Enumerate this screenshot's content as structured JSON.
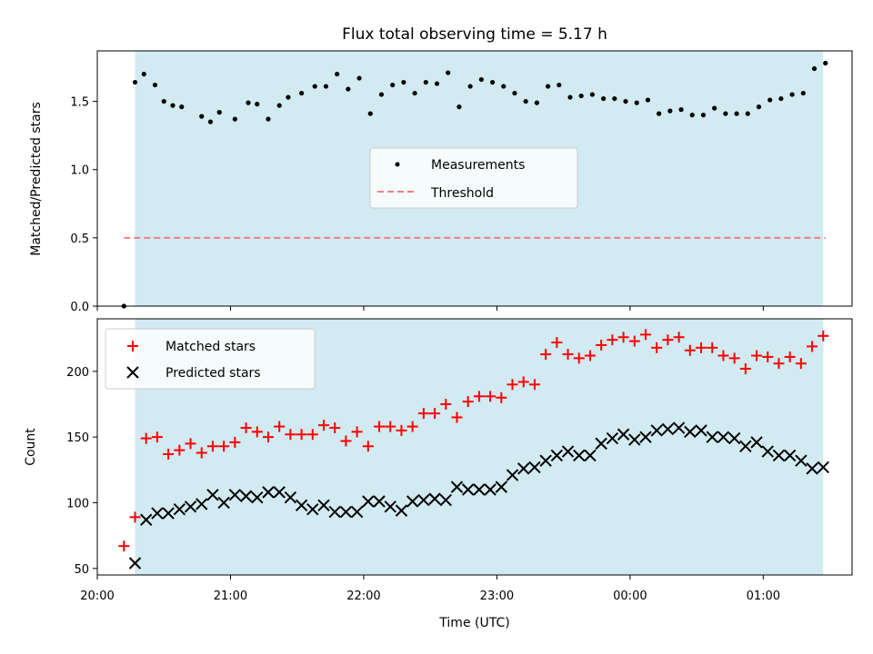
{
  "chart_data": [
    {
      "type": "scatter",
      "title": "Flux total observing time = 5.17 h",
      "ylabel": "Matched/Predicted stars",
      "xlim": [
        "20:00",
        "01:40"
      ],
      "ylim": [
        0,
        1.87
      ],
      "yticks": [
        "0.0",
        "0.5",
        "1.0",
        "1.5"
      ],
      "x_ticks_unlabeled": [
        "20:00",
        "21:00",
        "22:00",
        "23:00",
        "00:00",
        "01:00"
      ],
      "shaded_interval": [
        "20:17",
        "01:27"
      ],
      "shade_color": "#add8e6",
      "legend_position": "center",
      "series": [
        {
          "name": "Measurements",
          "marker": "dot",
          "color": "#000000",
          "points": [
            [
              "20:12",
              0.0
            ],
            [
              "20:17",
              1.64
            ],
            [
              "20:21",
              1.7
            ],
            [
              "20:26",
              1.62
            ],
            [
              "20:30",
              1.5
            ],
            [
              "20:34",
              1.47
            ],
            [
              "20:38",
              1.46
            ],
            [
              "20:47",
              1.39
            ],
            [
              "20:51",
              1.35
            ],
            [
              "20:55",
              1.42
            ],
            [
              "21:02",
              1.37
            ],
            [
              "21:08",
              1.49
            ],
            [
              "21:12",
              1.48
            ],
            [
              "21:17",
              1.37
            ],
            [
              "21:22",
              1.47
            ],
            [
              "21:26",
              1.53
            ],
            [
              "21:32",
              1.56
            ],
            [
              "21:38",
              1.61
            ],
            [
              "21:43",
              1.61
            ],
            [
              "21:48",
              1.7
            ],
            [
              "21:53",
              1.59
            ],
            [
              "21:58",
              1.67
            ],
            [
              "22:03",
              1.41
            ],
            [
              "22:08",
              1.55
            ],
            [
              "22:13",
              1.62
            ],
            [
              "22:18",
              1.64
            ],
            [
              "22:23",
              1.56
            ],
            [
              "22:28",
              1.64
            ],
            [
              "22:33",
              1.63
            ],
            [
              "22:38",
              1.71
            ],
            [
              "22:43",
              1.46
            ],
            [
              "22:48",
              1.61
            ],
            [
              "22:53",
              1.66
            ],
            [
              "22:58",
              1.64
            ],
            [
              "23:03",
              1.61
            ],
            [
              "23:08",
              1.56
            ],
            [
              "23:13",
              1.5
            ],
            [
              "23:18",
              1.49
            ],
            [
              "23:23",
              1.61
            ],
            [
              "23:28",
              1.62
            ],
            [
              "23:33",
              1.53
            ],
            [
              "23:38",
              1.54
            ],
            [
              "23:43",
              1.55
            ],
            [
              "23:48",
              1.52
            ],
            [
              "23:53",
              1.52
            ],
            [
              "23:58",
              1.5
            ],
            [
              "00:03",
              1.49
            ],
            [
              "00:08",
              1.51
            ],
            [
              "00:13",
              1.41
            ],
            [
              "00:18",
              1.43
            ],
            [
              "00:23",
              1.44
            ],
            [
              "00:28",
              1.4
            ],
            [
              "00:33",
              1.4
            ],
            [
              "00:38",
              1.45
            ],
            [
              "00:43",
              1.41
            ],
            [
              "00:48",
              1.41
            ],
            [
              "00:53",
              1.41
            ],
            [
              "00:58",
              1.46
            ],
            [
              "01:03",
              1.51
            ],
            [
              "01:08",
              1.52
            ],
            [
              "01:13",
              1.55
            ],
            [
              "01:18",
              1.56
            ],
            [
              "01:23",
              1.74
            ],
            [
              "01:28",
              1.78
            ]
          ]
        },
        {
          "name": "Threshold",
          "marker": "dashed-line",
          "color": "#f08080",
          "points": [
            [
              "20:12",
              0.5
            ],
            [
              "01:28",
              0.5
            ]
          ]
        }
      ]
    },
    {
      "type": "scatter",
      "xlabel": "Time (UTC)",
      "ylabel": "Count",
      "xlim": [
        "20:00",
        "01:40"
      ],
      "ylim": [
        45,
        240
      ],
      "xticks": [
        "20:00",
        "21:00",
        "22:00",
        "23:00",
        "00:00",
        "01:00"
      ],
      "yticks": [
        "50",
        "100",
        "150",
        "200"
      ],
      "shaded_interval": [
        "20:17",
        "01:27"
      ],
      "shade_color": "#add8e6",
      "legend_position": "top-left",
      "series": [
        {
          "name": "Matched stars",
          "marker": "plus",
          "color": "#ff0000",
          "points": [
            [
              "20:12",
              67
            ],
            [
              "20:17",
              89
            ],
            [
              "20:22",
              149
            ],
            [
              "20:27",
              150
            ],
            [
              "20:32",
              137
            ],
            [
              "20:37",
              140
            ],
            [
              "20:42",
              145
            ],
            [
              "20:47",
              138
            ],
            [
              "20:52",
              143
            ],
            [
              "20:57",
              143
            ],
            [
              "21:02",
              146
            ],
            [
              "21:07",
              157
            ],
            [
              "21:12",
              154
            ],
            [
              "21:17",
              150
            ],
            [
              "21:22",
              158
            ],
            [
              "21:27",
              152
            ],
            [
              "21:32",
              152
            ],
            [
              "21:37",
              152
            ],
            [
              "21:42",
              159
            ],
            [
              "21:47",
              157
            ],
            [
              "21:52",
              147
            ],
            [
              "21:57",
              154
            ],
            [
              "22:02",
              143
            ],
            [
              "22:07",
              158
            ],
            [
              "22:12",
              158
            ],
            [
              "22:17",
              155
            ],
            [
              "22:22",
              158
            ],
            [
              "22:27",
              168
            ],
            [
              "22:32",
              168
            ],
            [
              "22:37",
              175
            ],
            [
              "22:42",
              165
            ],
            [
              "22:47",
              177
            ],
            [
              "22:52",
              181
            ],
            [
              "22:57",
              181
            ],
            [
              "23:02",
              180
            ],
            [
              "23:07",
              190
            ],
            [
              "23:12",
              192
            ],
            [
              "23:17",
              190
            ],
            [
              "23:22",
              213
            ],
            [
              "23:27",
              222
            ],
            [
              "23:32",
              213
            ],
            [
              "23:37",
              210
            ],
            [
              "23:42",
              212
            ],
            [
              "23:47",
              220
            ],
            [
              "23:52",
              224
            ],
            [
              "23:57",
              226
            ],
            [
              "00:02",
              223
            ],
            [
              "00:07",
              228
            ],
            [
              "00:12",
              218
            ],
            [
              "00:17",
              224
            ],
            [
              "00:22",
              226
            ],
            [
              "00:27",
              216
            ],
            [
              "00:32",
              218
            ],
            [
              "00:37",
              218
            ],
            [
              "00:42",
              212
            ],
            [
              "00:47",
              210
            ],
            [
              "00:52",
              202
            ],
            [
              "00:57",
              212
            ],
            [
              "01:02",
              211
            ],
            [
              "01:07",
              206
            ],
            [
              "01:12",
              211
            ],
            [
              "01:17",
              206
            ],
            [
              "01:22",
              219
            ],
            [
              "01:27",
              227
            ]
          ]
        },
        {
          "name": "Predicted stars",
          "marker": "x",
          "color": "#000000",
          "points": [
            [
              "20:17",
              54
            ],
            [
              "20:22",
              87
            ],
            [
              "20:27",
              92
            ],
            [
              "20:32",
              92
            ],
            [
              "20:37",
              95
            ],
            [
              "20:42",
              97
            ],
            [
              "20:47",
              99
            ],
            [
              "20:52",
              106
            ],
            [
              "20:57",
              100
            ],
            [
              "21:02",
              106
            ],
            [
              "21:07",
              105
            ],
            [
              "21:12",
              104
            ],
            [
              "21:17",
              108
            ],
            [
              "21:22",
              108
            ],
            [
              "21:27",
              104
            ],
            [
              "21:32",
              98
            ],
            [
              "21:37",
              95
            ],
            [
              "21:42",
              98
            ],
            [
              "21:47",
              93
            ],
            [
              "21:52",
              93
            ],
            [
              "21:57",
              93
            ],
            [
              "22:02",
              101
            ],
            [
              "22:07",
              101
            ],
            [
              "22:12",
              97
            ],
            [
              "22:17",
              94
            ],
            [
              "22:22",
              101
            ],
            [
              "22:27",
              102
            ],
            [
              "22:32",
              103
            ],
            [
              "22:37",
              102
            ],
            [
              "22:42",
              112
            ],
            [
              "22:47",
              110
            ],
            [
              "22:52",
              110
            ],
            [
              "22:57",
              110
            ],
            [
              "23:02",
              112
            ],
            [
              "23:07",
              121
            ],
            [
              "23:12",
              126
            ],
            [
              "23:17",
              127
            ],
            [
              "23:22",
              132
            ],
            [
              "23:27",
              136
            ],
            [
              "23:32",
              139
            ],
            [
              "23:37",
              136
            ],
            [
              "23:42",
              136
            ],
            [
              "23:47",
              145
            ],
            [
              "23:52",
              149
            ],
            [
              "23:57",
              152
            ],
            [
              "00:02",
              148
            ],
            [
              "00:07",
              150
            ],
            [
              "00:12",
              155
            ],
            [
              "00:17",
              156
            ],
            [
              "00:22",
              157
            ],
            [
              "00:27",
              154
            ],
            [
              "00:32",
              155
            ],
            [
              "00:37",
              150
            ],
            [
              "00:42",
              150
            ],
            [
              "00:47",
              149
            ],
            [
              "00:52",
              143
            ],
            [
              "00:57",
              146
            ],
            [
              "01:02",
              139
            ],
            [
              "01:07",
              136
            ],
            [
              "01:12",
              136
            ],
            [
              "01:17",
              132
            ],
            [
              "01:22",
              126
            ],
            [
              "01:27",
              127
            ]
          ]
        }
      ]
    }
  ]
}
